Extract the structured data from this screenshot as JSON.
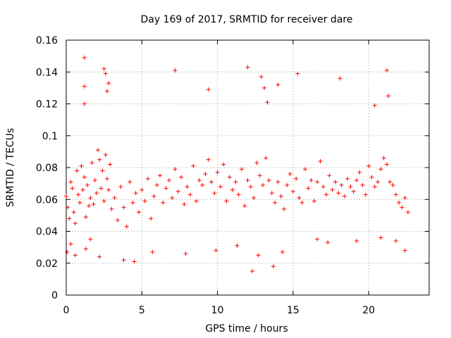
{
  "chart_data": {
    "type": "scatter",
    "title": "Day 169 of 2017, SRMTID for receiver dare",
    "xlabel": "GPS time / hours",
    "ylabel": "SRMTID / TECUs",
    "xlim": [
      0,
      24
    ],
    "ylim": [
      0,
      0.16
    ],
    "xticks": [
      0,
      5,
      10,
      15,
      20
    ],
    "xtick_labels": [
      "0",
      "5",
      "10",
      "15",
      "20"
    ],
    "yticks": [
      0,
      0.02,
      0.04,
      0.06,
      0.08,
      0.1,
      0.12,
      0.14,
      0.16
    ],
    "ytick_labels": [
      "0",
      "0.02",
      "0.04",
      "0.06",
      "0.08",
      "0.1",
      "0.12",
      "0.14",
      "0.16"
    ],
    "grid": true,
    "marker": "+",
    "color": "#ff0000",
    "series": [
      {
        "name": "SRMTID",
        "x": [
          0.0,
          0.1,
          0.2,
          0.3,
          0.4,
          0.5,
          0.6,
          0.7,
          0.8,
          0.9,
          1.0,
          1.1,
          1.2,
          1.3,
          1.4,
          1.5,
          1.6,
          1.7,
          1.8,
          1.9,
          2.0,
          2.1,
          2.2,
          2.3,
          2.4,
          2.5,
          2.6,
          2.7,
          2.8,
          2.9,
          3.0,
          3.2,
          3.4,
          3.6,
          3.8,
          4.0,
          4.2,
          4.4,
          4.6,
          4.8,
          5.0,
          5.2,
          5.4,
          5.6,
          5.8,
          6.0,
          6.2,
          6.4,
          6.6,
          6.8,
          7.0,
          7.2,
          7.4,
          7.6,
          7.8,
          8.0,
          8.2,
          8.4,
          8.6,
          8.8,
          9.0,
          9.2,
          9.4,
          9.6,
          9.8,
          10.0,
          10.2,
          10.4,
          10.6,
          10.8,
          11.0,
          11.2,
          11.4,
          11.6,
          11.8,
          12.0,
          12.2,
          12.4,
          12.6,
          12.8,
          13.0,
          13.2,
          13.4,
          13.6,
          13.8,
          14.0,
          14.2,
          14.4,
          14.6,
          14.8,
          15.0,
          15.2,
          15.4,
          15.6,
          15.8,
          16.0,
          16.2,
          16.4,
          16.6,
          16.8,
          17.0,
          17.2,
          17.4,
          17.6,
          17.8,
          18.0,
          18.2,
          18.4,
          18.6,
          18.8,
          19.0,
          19.2,
          19.4,
          19.6,
          19.8,
          20.0,
          20.2,
          20.4,
          20.6,
          20.8,
          21.0,
          21.2,
          21.4,
          21.6,
          21.8,
          22.0,
          22.2,
          22.4,
          22.6,
          1.2,
          1.2,
          1.2,
          2.5,
          2.6,
          2.7,
          2.8,
          7.2,
          9.4,
          12.0,
          12.9,
          13.1,
          13.3,
          14.0,
          15.3,
          18.1,
          20.4,
          21.2,
          21.3,
          0.05,
          0.3,
          0.6,
          1.3,
          1.6,
          2.2,
          3.8,
          4.5,
          5.7,
          7.9,
          9.9,
          11.3,
          12.3,
          12.7,
          13.7,
          14.3,
          16.6,
          17.3,
          19.2,
          20.8,
          21.8,
          22.4
        ],
        "y": [
          0.062,
          0.055,
          0.048,
          0.071,
          0.067,
          0.052,
          0.045,
          0.078,
          0.063,
          0.058,
          0.081,
          0.066,
          0.074,
          0.049,
          0.069,
          0.056,
          0.061,
          0.083,
          0.057,
          0.072,
          0.064,
          0.091,
          0.085,
          0.067,
          0.078,
          0.059,
          0.088,
          0.073,
          0.066,
          0.082,
          0.054,
          0.061,
          0.047,
          0.068,
          0.055,
          0.043,
          0.071,
          0.058,
          0.064,
          0.052,
          0.066,
          0.059,
          0.073,
          0.048,
          0.062,
          0.069,
          0.075,
          0.058,
          0.067,
          0.072,
          0.061,
          0.079,
          0.065,
          0.074,
          0.057,
          0.068,
          0.063,
          0.081,
          0.059,
          0.072,
          0.069,
          0.076,
          0.085,
          0.071,
          0.064,
          0.077,
          0.068,
          0.082,
          0.059,
          0.074,
          0.066,
          0.071,
          0.063,
          0.079,
          0.056,
          0.072,
          0.068,
          0.061,
          0.083,
          0.075,
          0.069,
          0.086,
          0.072,
          0.064,
          0.058,
          0.071,
          0.062,
          0.054,
          0.069,
          0.076,
          0.065,
          0.073,
          0.061,
          0.058,
          0.079,
          0.067,
          0.072,
          0.059,
          0.071,
          0.084,
          0.068,
          0.063,
          0.075,
          0.066,
          0.071,
          0.064,
          0.069,
          0.062,
          0.073,
          0.068,
          0.065,
          0.072,
          0.077,
          0.069,
          0.063,
          0.081,
          0.074,
          0.068,
          0.071,
          0.079,
          0.086,
          0.082,
          0.071,
          0.069,
          0.063,
          0.058,
          0.055,
          0.061,
          0.052,
          0.149,
          0.131,
          0.12,
          0.142,
          0.139,
          0.128,
          0.133,
          0.141,
          0.129,
          0.143,
          0.137,
          0.13,
          0.121,
          0.132,
          0.139,
          0.136,
          0.119,
          0.141,
          0.125,
          0.027,
          0.032,
          0.025,
          0.029,
          0.035,
          0.024,
          0.022,
          0.021,
          0.027,
          0.026,
          0.028,
          0.031,
          0.015,
          0.025,
          0.018,
          0.027,
          0.035,
          0.033,
          0.034,
          0.036,
          0.034,
          0.028
        ]
      }
    ]
  }
}
